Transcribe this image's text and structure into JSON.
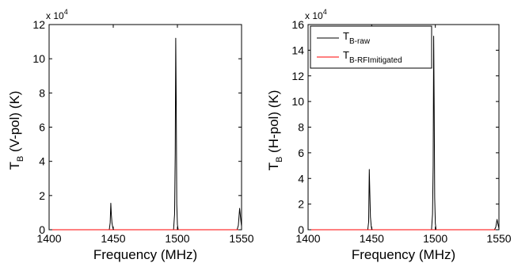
{
  "chart_data": [
    {
      "type": "line",
      "ylabel": {
        "main": "T",
        "sub": "B",
        "rest": " (V-pol) (K)"
      },
      "xlabel": "Frequency (MHz)",
      "multiplier": {
        "base": "x 10",
        "exp": "4"
      },
      "xlim": [
        1400,
        1550
      ],
      "ylim": [
        0,
        12
      ],
      "xticks": [
        1400,
        1450,
        1500,
        1550
      ],
      "yticks": [
        0,
        2,
        4,
        6,
        8,
        10,
        12
      ],
      "grid": false,
      "colors": {
        "raw": "#000000",
        "mitigated": "#ff0000"
      },
      "series": [
        {
          "id": "raw",
          "x": [
            1400,
            1446.9,
            1447.6,
            1448.1,
            1448.5,
            1449.0,
            1449.7,
            1450.4,
            1497.0,
            1497.8,
            1498.3,
            1498.7,
            1499.1,
            1499.5,
            1500.0,
            1500.6,
            1546.5,
            1547.5,
            1548.5,
            1549.5,
            1550
          ],
          "y": [
            0,
            0,
            0.4,
            1.55,
            0.9,
            0.4,
            0.1,
            0,
            0,
            0.9,
            4.5,
            11.2,
            7.3,
            1.5,
            0.3,
            0,
            0,
            0.25,
            1.25,
            0.5,
            0.2
          ]
        },
        {
          "id": "mitigated",
          "x": [
            1400,
            1550
          ],
          "y": [
            0,
            0
          ]
        }
      ]
    },
    {
      "type": "line",
      "ylabel": {
        "main": "T",
        "sub": "B",
        "rest": " (H-pol) (K)"
      },
      "xlabel": "Frequency (MHz)",
      "multiplier": {
        "base": "x 10",
        "exp": "4"
      },
      "xlim": [
        1400,
        1550
      ],
      "ylim": [
        0,
        16
      ],
      "xticks": [
        1400,
        1450,
        1500,
        1550
      ],
      "yticks": [
        0,
        2,
        4,
        6,
        8,
        10,
        12,
        14,
        16
      ],
      "grid": false,
      "colors": {
        "raw": "#000000",
        "mitigated": "#ff0000"
      },
      "legend": {
        "position": "top-left",
        "entries": [
          {
            "main": "T",
            "sub": "B-raw",
            "color": "#000000"
          },
          {
            "main": "T",
            "sub": "B-RFImitigated",
            "color": "#ff0000"
          }
        ]
      },
      "series": [
        {
          "id": "raw",
          "x": [
            1400,
            1446.9,
            1447.6,
            1448.1,
            1448.5,
            1449.0,
            1449.7,
            1450.4,
            1497.0,
            1497.8,
            1498.3,
            1498.7,
            1499.1,
            1499.5,
            1500.0,
            1500.6,
            1546.5,
            1547.5,
            1548.5,
            1549.5,
            1550
          ],
          "y": [
            0,
            0,
            0.6,
            4.7,
            3.0,
            1.0,
            0.2,
            0,
            0,
            1.2,
            5.0,
            15.1,
            9.6,
            2.5,
            0.5,
            0,
            0,
            0.2,
            0.8,
            0.3,
            0.1
          ]
        },
        {
          "id": "mitigated",
          "x": [
            1400,
            1550
          ],
          "y": [
            0,
            0
          ]
        }
      ]
    }
  ]
}
